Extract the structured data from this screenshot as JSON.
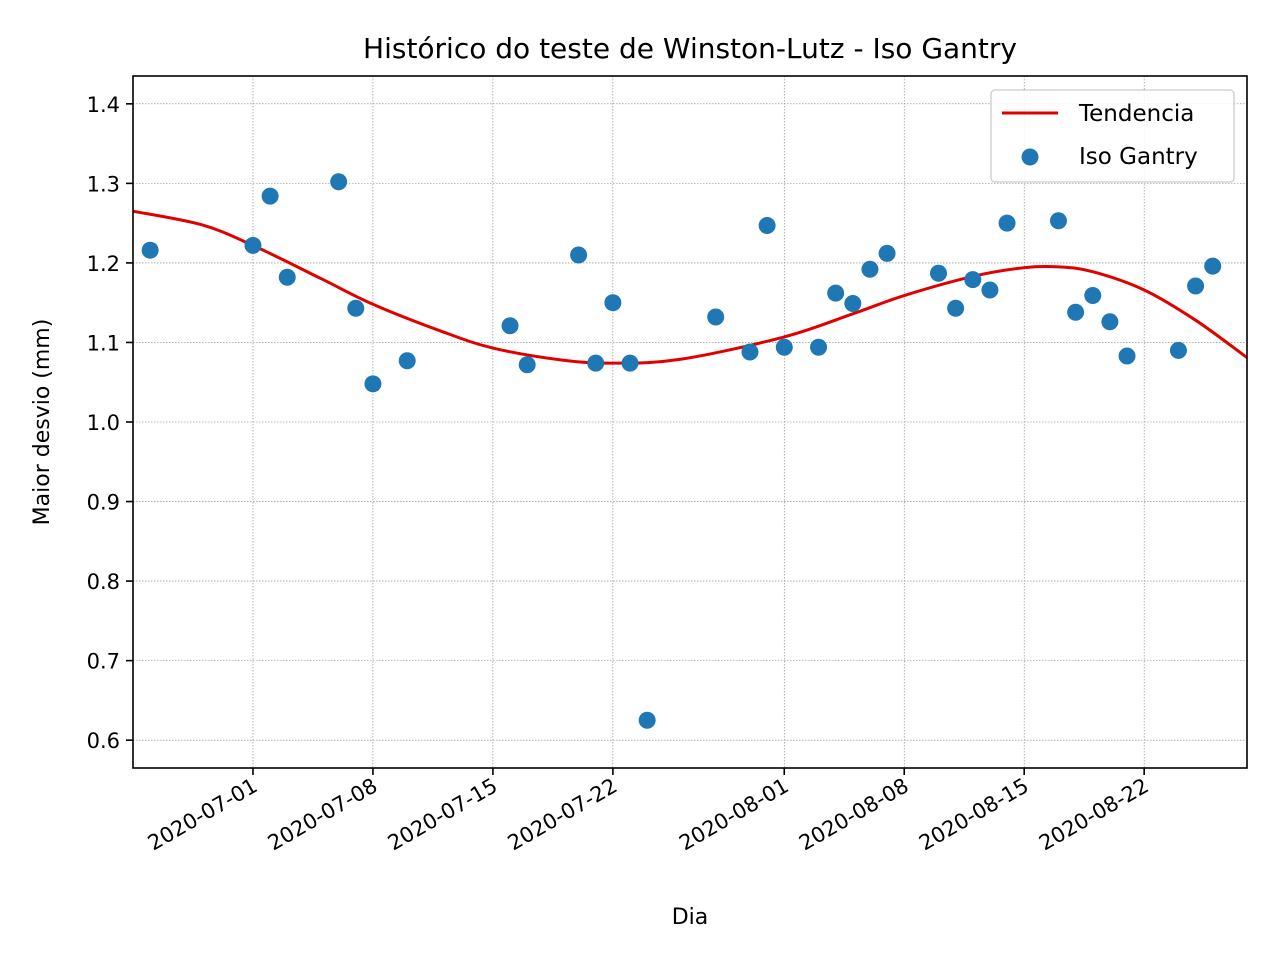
{
  "chart_data": {
    "type": "scatter",
    "title": "Histórico do teste de Winston-Lutz - Iso Gantry",
    "xlabel": "Dia",
    "ylabel": "Maior desvio (mm)",
    "x_axis_type": "date",
    "xlim": [
      "2020-06-24",
      "2020-08-28"
    ],
    "ylim": [
      0.565,
      1.435
    ],
    "x_ticks": [
      "2020-07-01",
      "2020-07-08",
      "2020-07-15",
      "2020-07-22",
      "2020-08-01",
      "2020-08-08",
      "2020-08-15",
      "2020-08-22"
    ],
    "y_ticks": [
      0.6,
      0.7,
      0.8,
      0.9,
      1.0,
      1.1,
      1.2,
      1.3,
      1.4
    ],
    "y_tick_labels": [
      "0.6",
      "0.7",
      "0.8",
      "0.9",
      "1.0",
      "1.1",
      "1.2",
      "1.3",
      "1.4"
    ],
    "grid": true,
    "legend_position": "top-right",
    "series": [
      {
        "name": "Tendencia",
        "type": "line",
        "color": "#e00000",
        "x": [
          "2020-06-24",
          "2020-06-28",
          "2020-07-01",
          "2020-07-05",
          "2020-07-08",
          "2020-07-12",
          "2020-07-15",
          "2020-07-19",
          "2020-07-22",
          "2020-07-26",
          "2020-08-01",
          "2020-08-05",
          "2020-08-08",
          "2020-08-12",
          "2020-08-15",
          "2020-08-17",
          "2020-08-19",
          "2020-08-22",
          "2020-08-25",
          "2020-08-28"
        ],
        "y": [
          1.265,
          1.248,
          1.222,
          1.18,
          1.148,
          1.114,
          1.093,
          1.078,
          1.074,
          1.079,
          1.107,
          1.136,
          1.159,
          1.183,
          1.194,
          1.195,
          1.189,
          1.166,
          1.128,
          1.081
        ]
      },
      {
        "name": "Iso Gantry",
        "type": "scatter",
        "color": "#1f77b4",
        "x": [
          "2020-06-25",
          "2020-07-01",
          "2020-07-02",
          "2020-07-03",
          "2020-07-06",
          "2020-07-07",
          "2020-07-08",
          "2020-07-10",
          "2020-07-16",
          "2020-07-17",
          "2020-07-20",
          "2020-07-21",
          "2020-07-22",
          "2020-07-23",
          "2020-07-24",
          "2020-07-28",
          "2020-07-30",
          "2020-07-31",
          "2020-08-01",
          "2020-08-03",
          "2020-08-04",
          "2020-08-05",
          "2020-08-06",
          "2020-08-07",
          "2020-08-10",
          "2020-08-11",
          "2020-08-12",
          "2020-08-13",
          "2020-08-14",
          "2020-08-17",
          "2020-08-18",
          "2020-08-19",
          "2020-08-20",
          "2020-08-21",
          "2020-08-24",
          "2020-08-25",
          "2020-08-26"
        ],
        "y": [
          1.216,
          1.222,
          1.284,
          1.182,
          1.302,
          1.143,
          1.048,
          1.077,
          1.121,
          1.072,
          1.21,
          1.074,
          1.15,
          1.074,
          0.625,
          1.132,
          1.088,
          1.247,
          1.094,
          1.094,
          1.162,
          1.149,
          1.192,
          1.212,
          1.187,
          1.143,
          1.179,
          1.166,
          1.25,
          1.253,
          1.138,
          1.159,
          1.126,
          1.083,
          1.09,
          1.171,
          1.196
        ]
      }
    ]
  }
}
